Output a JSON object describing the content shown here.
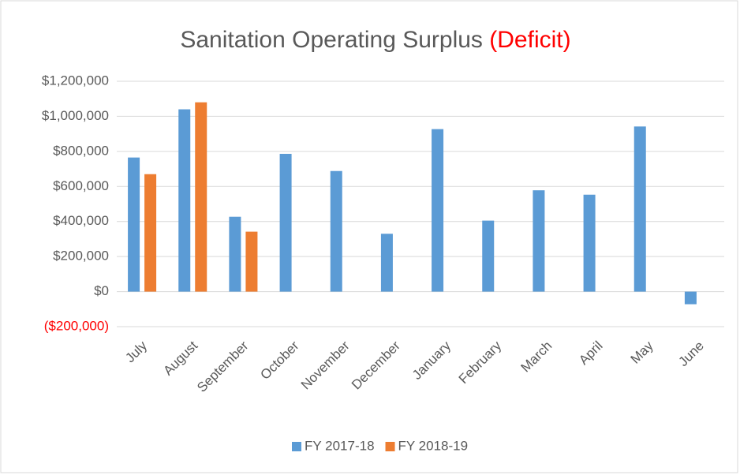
{
  "chart_data": {
    "type": "bar",
    "title": "Sanitation Operating Surplus",
    "title_suffix": "(Deficit)",
    "categories": [
      "July",
      "August",
      "September",
      "October",
      "November",
      "December",
      "January",
      "February",
      "March",
      "April",
      "May",
      "June"
    ],
    "series": [
      {
        "name": "FY 2017-18",
        "color": "#5b9bd5",
        "values": [
          765000,
          1040000,
          427000,
          786000,
          688000,
          330000,
          927000,
          405000,
          578000,
          553000,
          942000,
          -72000
        ]
      },
      {
        "name": "FY 2018-19",
        "color": "#ed7d31",
        "values": [
          670000,
          1080000,
          342000,
          null,
          null,
          null,
          null,
          null,
          null,
          null,
          null,
          null
        ]
      }
    ],
    "ylim": [
      -200000,
      1200000
    ],
    "yticks": [
      {
        "value": -200000,
        "label": "($200,000)"
      },
      {
        "value": 0,
        "label": "$0"
      },
      {
        "value": 200000,
        "label": "$200,000"
      },
      {
        "value": 400000,
        "label": "$400,000"
      },
      {
        "value": 600000,
        "label": "$600,000"
      },
      {
        "value": 800000,
        "label": "$800,000"
      },
      {
        "value": 1000000,
        "label": "$1,000,000"
      },
      {
        "value": 1200000,
        "label": "$1,200,000"
      }
    ],
    "grid": true,
    "legend": "bottom"
  }
}
